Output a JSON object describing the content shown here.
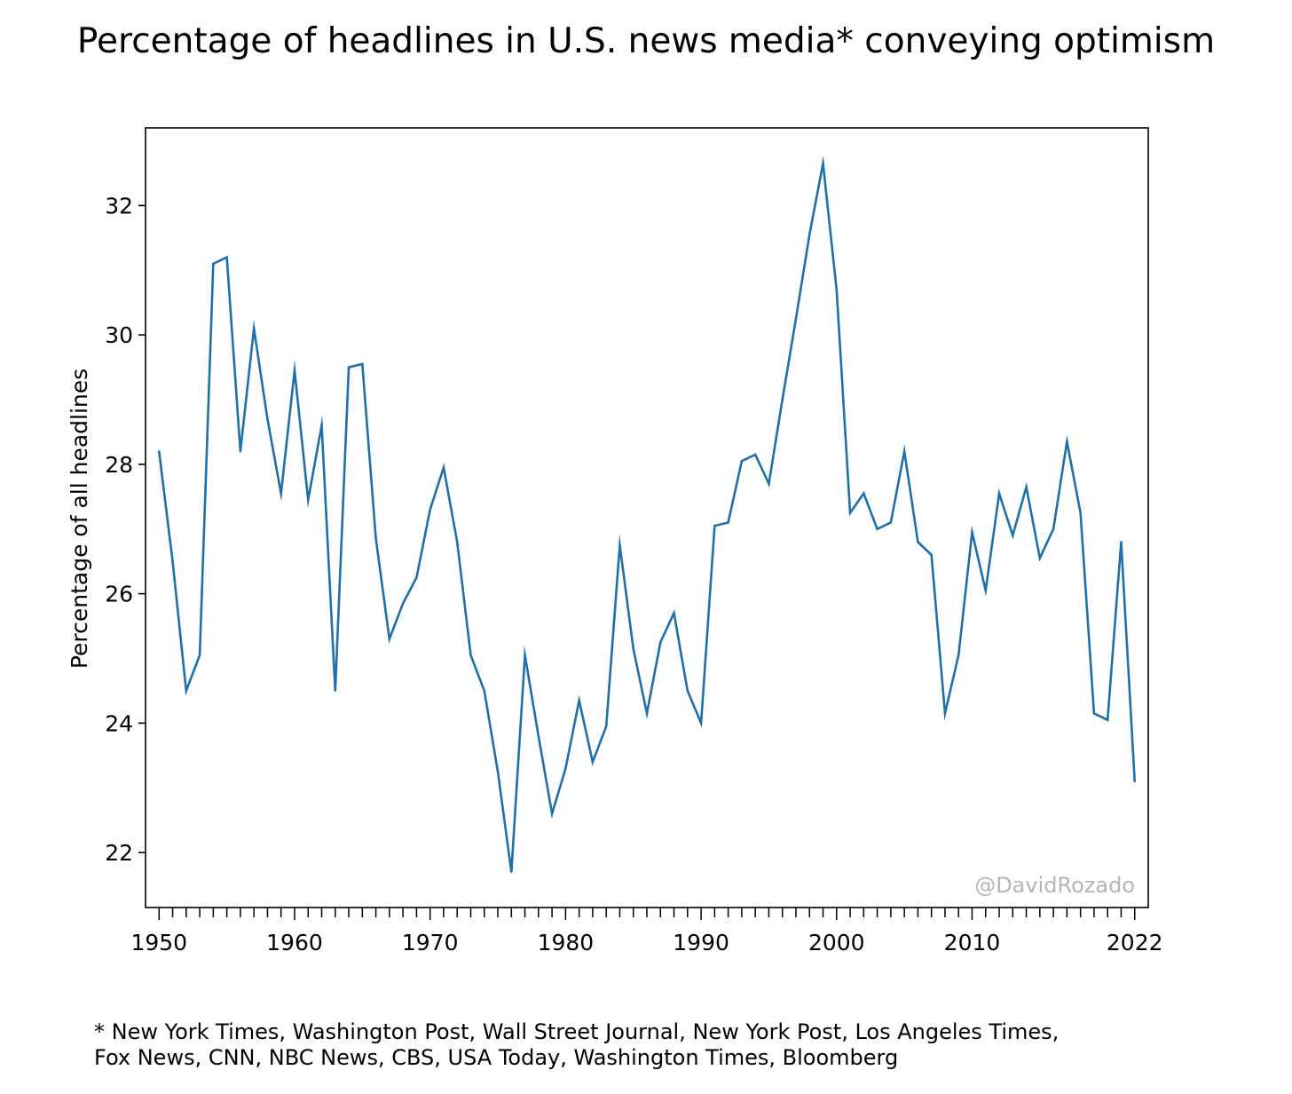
{
  "chart_data": {
    "type": "line",
    "title": "Percentage of headlines in U.S. news media* conveying optimism",
    "xlabel": "",
    "ylabel": "Percentage of all headlines",
    "xlim": [
      1949,
      2023
    ],
    "ylim": [
      21.15,
      33.2
    ],
    "x_ticks_labeled": [
      1950,
      1960,
      1970,
      1980,
      1990,
      2000,
      2010,
      2022
    ],
    "y_ticks": [
      22,
      24,
      26,
      28,
      30,
      32
    ],
    "grid": false,
    "watermark": "@DavidRozado",
    "series": [
      {
        "color": "#1f6fa8",
        "x": [
          1950,
          1951,
          1952,
          1953,
          1954,
          1955,
          1956,
          1957,
          1958,
          1959,
          1960,
          1961,
          1962,
          1963,
          1964,
          1965,
          1966,
          1967,
          1968,
          1969,
          1970,
          1971,
          1972,
          1973,
          1974,
          1975,
          1976,
          1977,
          1978,
          1979,
          1980,
          1981,
          1982,
          1983,
          1984,
          1985,
          1986,
          1987,
          1988,
          1989,
          1990,
          1991,
          1992,
          1993,
          1994,
          1995,
          1996,
          1997,
          1998,
          1999,
          2000,
          2001,
          2002,
          2003,
          2004,
          2005,
          2006,
          2007,
          2008,
          2009,
          2010,
          2011,
          2012,
          2013,
          2014,
          2015,
          2016,
          2017,
          2018,
          2019,
          2020,
          2021,
          2022
        ],
        "values": [
          28.2,
          26.5,
          24.5,
          25.05,
          31.1,
          31.2,
          28.2,
          30.1,
          28.7,
          27.55,
          29.45,
          27.45,
          28.6,
          24.5,
          29.5,
          29.55,
          26.85,
          25.3,
          25.85,
          26.25,
          27.3,
          27.95,
          26.8,
          25.05,
          24.5,
          23.25,
          21.7,
          25.05,
          23.8,
          22.6,
          23.3,
          24.35,
          23.4,
          23.95,
          26.75,
          25.15,
          24.15,
          25.25,
          25.7,
          24.5,
          24.0,
          27.05,
          27.1,
          28.05,
          28.15,
          27.7,
          29.0,
          30.25,
          31.55,
          32.65,
          30.7,
          27.25,
          27.55,
          27.0,
          27.1,
          28.2,
          26.8,
          26.6,
          24.15,
          25.05,
          26.95,
          26.05,
          27.55,
          26.9,
          27.65,
          26.55,
          27.0,
          28.35,
          27.25,
          24.15,
          24.05,
          26.8,
          23.1
        ]
      }
    ]
  },
  "footnote": {
    "line1": "* New York Times, Washington Post, Wall Street Journal, New York Post, Los Angeles Times,",
    "line2": "Fox News, CNN, NBC News, CBS, USA Today, Washington Times, Bloomberg"
  }
}
